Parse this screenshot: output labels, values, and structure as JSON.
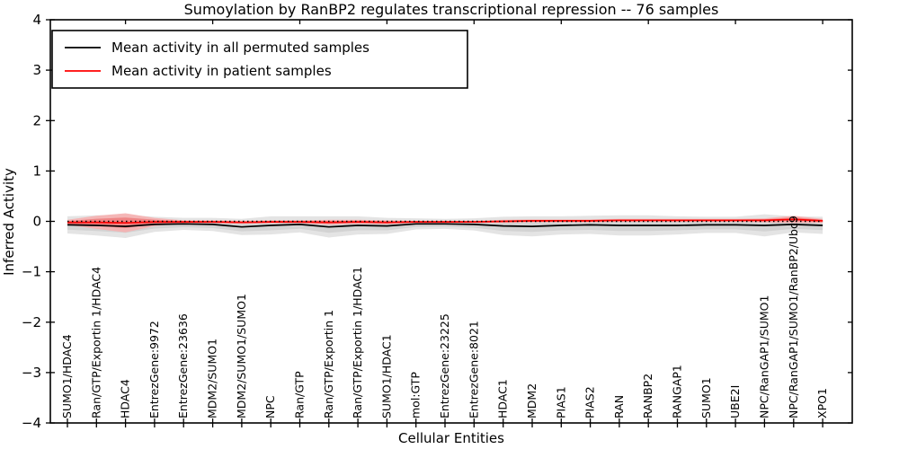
{
  "chart_data": {
    "type": "line",
    "title": "Sumoylation by RanBP2 regulates transcriptional repression -- 76 samples",
    "xlabel": "Cellular Entities",
    "ylabel": "Inferred Activity",
    "ylim": [
      -4,
      4
    ],
    "yticks": [
      -4,
      -3,
      -2,
      -1,
      0,
      1,
      2,
      3,
      4
    ],
    "grid": false,
    "frame": true,
    "legend_position": "upper-left",
    "zero_line": {
      "value": 0,
      "style": "dotted",
      "color": "#000000"
    },
    "categories": [
      "SUMO1/HDAC4",
      "Ran/GTP/Exportin 1/HDAC4",
      "HDAC4",
      "EntrezGene:9972",
      "EntrezGene:23636",
      "MDM2/SUMO1",
      "MDM2/SUMO1/SUMO1",
      "NPC",
      "Ran/GTP",
      "Ran/GTP/Exportin 1",
      "Ran/GTP/Exportin 1/HDAC1",
      "SUMO1/HDAC1",
      "mol:GTP",
      "EntrezGene:23225",
      "EntrezGene:8021",
      "HDAC1",
      "MDM2",
      "PIAS1",
      "PIAS2",
      "RAN",
      "RANBP2",
      "RANGAP1",
      "SUMO1",
      "UBE2I",
      "NPC/RanGAP1/SUMO1",
      "NPC/RanGAP1/SUMO1/RanBP2/Ubc9",
      "XPO1"
    ],
    "series": [
      {
        "name": "Mean activity in all permuted samples",
        "color": "#000000",
        "band_outer_color": "#e4e4e4",
        "band_inner_color": "#d3d3d3",
        "values": [
          -0.07,
          -0.08,
          -0.1,
          -0.06,
          -0.05,
          -0.06,
          -0.11,
          -0.08,
          -0.06,
          -0.11,
          -0.08,
          -0.09,
          -0.05,
          -0.05,
          -0.06,
          -0.09,
          -0.1,
          -0.08,
          -0.07,
          -0.08,
          -0.08,
          -0.08,
          -0.07,
          -0.07,
          -0.08,
          -0.06,
          -0.08
        ],
        "std": [
          0.17,
          0.2,
          0.23,
          0.15,
          0.12,
          0.13,
          0.16,
          0.18,
          0.16,
          0.21,
          0.18,
          0.16,
          0.11,
          0.1,
          0.12,
          0.18,
          0.2,
          0.18,
          0.18,
          0.2,
          0.2,
          0.18,
          0.16,
          0.16,
          0.22,
          0.16,
          0.17
        ]
      },
      {
        "name": "Mean activity in patient samples",
        "color": "#ff0000",
        "band_outer_color": "#f5b0b0",
        "band_inner_color": "#ee8080",
        "values": [
          -0.02,
          -0.02,
          -0.03,
          -0.01,
          -0.01,
          -0.01,
          -0.02,
          -0.01,
          -0.01,
          -0.02,
          -0.01,
          -0.02,
          -0.01,
          -0.01,
          -0.01,
          0.0,
          0.01,
          0.01,
          0.01,
          0.02,
          0.02,
          0.02,
          0.02,
          0.02,
          0.02,
          0.04,
          0.01
        ],
        "std": [
          0.05,
          0.13,
          0.19,
          0.08,
          0.03,
          0.03,
          0.03,
          0.03,
          0.03,
          0.05,
          0.04,
          0.04,
          0.02,
          0.02,
          0.02,
          0.03,
          0.03,
          0.03,
          0.03,
          0.03,
          0.03,
          0.03,
          0.03,
          0.03,
          0.04,
          0.07,
          0.04
        ]
      }
    ]
  }
}
